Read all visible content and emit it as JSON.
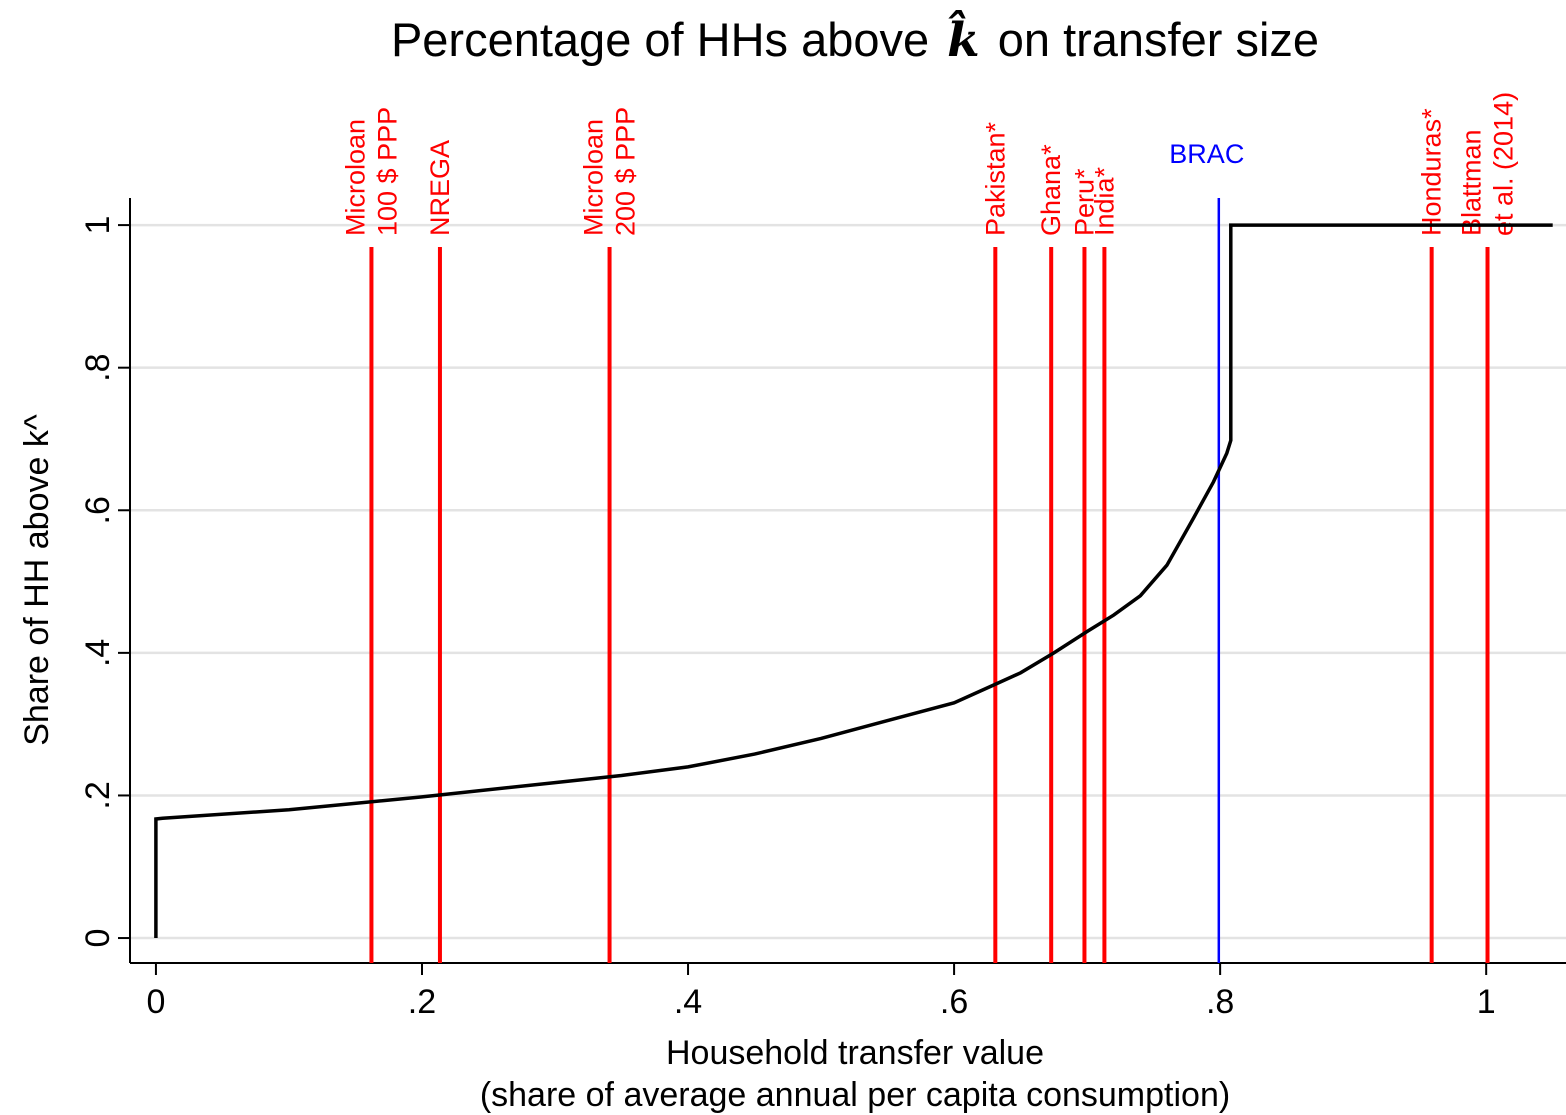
{
  "chart_data": {
    "type": "line",
    "title": [
      "Percentage of HHs above",
      "k̂",
      "on transfer size"
    ],
    "x_label": [
      "Household transfer value",
      "(share of average annual per capita consumption)"
    ],
    "y_label": "Share of HH above k^",
    "xlim": [
      -0.0195,
      1.06
    ],
    "ylim": [
      -0.035,
      1.038
    ],
    "xticks": [
      0,
      {
        "value": 0.2,
        "label": ".2"
      },
      {
        "value": 0.4,
        "label": ".4"
      },
      {
        "value": 0.6,
        "label": ".6"
      },
      {
        "value": 0.8,
        "label": ".8"
      },
      1
    ],
    "yticks": [
      0,
      {
        "value": 0.2,
        "label": ".2"
      },
      {
        "value": 0.4,
        "label": ".4"
      },
      {
        "value": 0.6,
        "label": ".6"
      },
      {
        "value": 0.8,
        "label": ".8"
      },
      1
    ],
    "grid": true,
    "series": [
      {
        "color": "#000000",
        "x": [
          0,
          0,
          0.005,
          0.1,
          0.2,
          0.3,
          0.35,
          0.4,
          0.45,
          0.5,
          0.55,
          0.6,
          0.63,
          0.65,
          0.675,
          0.7,
          0.72,
          0.74,
          0.76,
          0.78,
          0.795,
          0.805,
          0.808,
          0.808,
          1.05
        ],
        "values": [
          0,
          0.167,
          0.168,
          0.18,
          0.198,
          0.218,
          0.228,
          0.24,
          0.258,
          0.28,
          0.305,
          0.33,
          0.355,
          0.372,
          0.4,
          0.43,
          0.453,
          0.48,
          0.523,
          0.589,
          0.64,
          0.68,
          0.698,
          1.0,
          1.0
        ]
      }
    ],
    "reference_lines": [
      {
        "x": 0.162,
        "label": [
          "Microloan",
          "100 $ PPP"
        ],
        "color": "#ff0000"
      },
      {
        "x": 0.2135,
        "label": [
          "NREGA"
        ],
        "color": "#ff0000"
      },
      {
        "x": 0.341,
        "label": [
          "Microloan",
          "200 $ PPP"
        ],
        "color": "#ff0000"
      },
      {
        "x": 0.631,
        "label": [
          "Pakistan*"
        ],
        "color": "#ff0000"
      },
      {
        "x": 0.673,
        "label": [
          "Ghana*"
        ],
        "color": "#ff0000"
      },
      {
        "x": 0.698,
        "label": [
          "Peru*"
        ],
        "color": "#ff0000"
      },
      {
        "x": 0.713,
        "label": [
          "India*"
        ],
        "color": "#ff0000"
      },
      {
        "x": 0.799,
        "label": [
          "BRAC"
        ],
        "color": "#0000ff",
        "label_horizontal": true
      },
      {
        "x": 0.959,
        "label": [
          "Honduras*"
        ],
        "color": "#ff0000"
      },
      {
        "x": 1.001,
        "label": [
          "Blattman",
          "et al. (2014)"
        ],
        "color": "#ff0000"
      }
    ]
  }
}
